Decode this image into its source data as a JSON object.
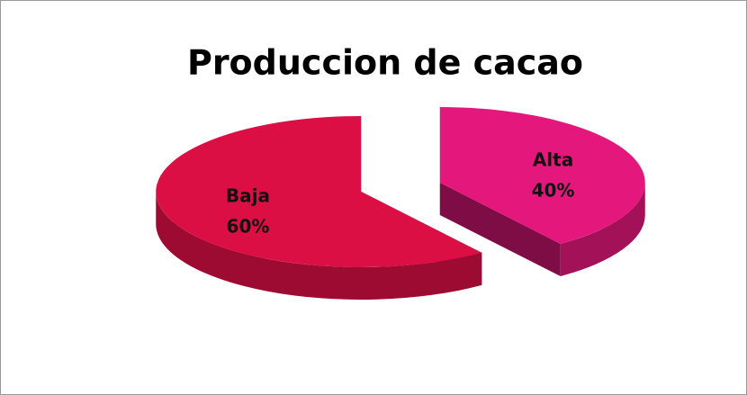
{
  "chart_data": {
    "type": "pie3d",
    "title": "Produccion de cacao",
    "categories": [
      "Alta",
      "Baja"
    ],
    "values": [
      40,
      60
    ],
    "value_labels": [
      "40%",
      "60%"
    ],
    "colors": [
      "#e3177c",
      "#dc0f45"
    ]
  }
}
